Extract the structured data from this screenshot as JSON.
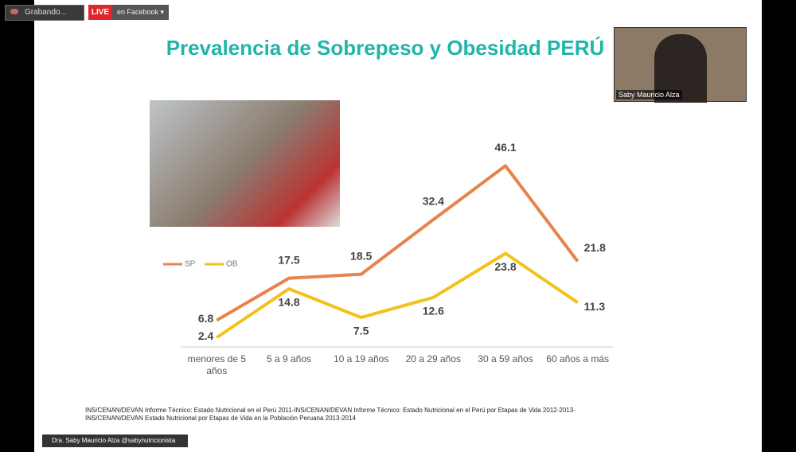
{
  "toolbar": {
    "recording": "Grabando...",
    "live": "LIVE",
    "destination": "en Facebook"
  },
  "video": {
    "name": "Saby Mauricio Alza"
  },
  "chart_data": {
    "type": "line",
    "title": "Prevalencia de Sobrepeso y Obesidad PERÚ",
    "categories": [
      "menores de 5 años",
      "5 a 9 años",
      "10 a 19 años",
      "20 a 29 años",
      "30 a 59 años",
      "60 años a más"
    ],
    "series": [
      {
        "name": "SP",
        "color": "#e8834a",
        "values": [
          6.8,
          17.5,
          18.5,
          32.4,
          46.1,
          21.8
        ]
      },
      {
        "name": "OB",
        "color": "#f2c21b",
        "values": [
          2.4,
          14.8,
          7.5,
          12.6,
          23.8,
          11.3
        ]
      }
    ],
    "ylim": [
      0,
      48
    ],
    "legend": "left"
  },
  "source": "INS/CENAN/DEVAN Informe Técnico: Estado Nutricional en el Perú 2011-INS/CENAN/DEVAN Informe Técnico: Estado Nutricional en el Perú por Etapas de Vida 2012-2013-INS/CENAN/DEVAN Estado Nutricional por Etapas de Vida en la Población Peruana 2013-2014",
  "footer": "Dra. Saby Mauricio Alza @sabynutricionista"
}
